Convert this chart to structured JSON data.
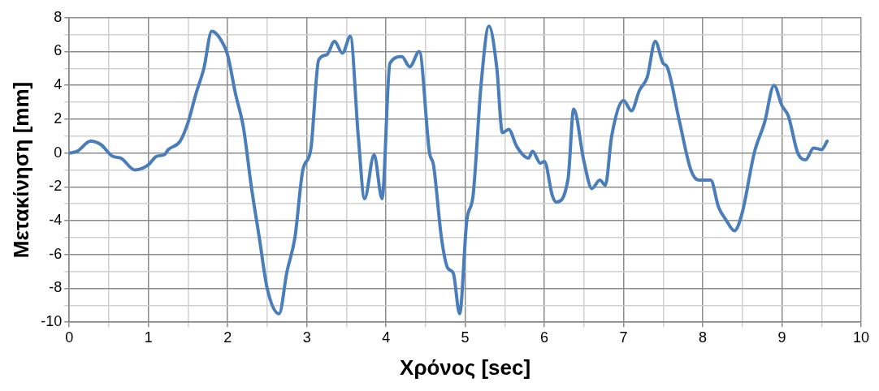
{
  "chart_data": {
    "type": "line",
    "xlabel": "Χρόνος [sec]",
    "ylabel": "Μετακίνηση [mm]",
    "xlim": [
      0,
      10
    ],
    "ylim": [
      -10,
      8
    ],
    "xticks": [
      0,
      {
        "value": 0.5,
        "label": null
      },
      1,
      {
        "value": 1.5,
        "label": null
      },
      2,
      {
        "value": 2.5,
        "label": null
      },
      3,
      {
        "value": 3.5,
        "label": null
      },
      4,
      {
        "value": 4.5,
        "label": null
      },
      5,
      {
        "value": 5.5,
        "label": null
      },
      6,
      {
        "value": 6.5,
        "label": null
      },
      7,
      {
        "value": 7.5,
        "label": null
      },
      8,
      {
        "value": 8.5,
        "label": null
      },
      9,
      {
        "value": 9.5,
        "label": null
      },
      10
    ],
    "yticks": [
      -10,
      {
        "value": -9,
        "label": null
      },
      -8,
      {
        "value": -7,
        "label": null
      },
      -6,
      {
        "value": -5,
        "label": null
      },
      -4,
      {
        "value": -3,
        "label": null
      },
      -2,
      {
        "value": -1,
        "label": null
      },
      0,
      {
        "value": 1,
        "label": null
      },
      2,
      {
        "value": 3,
        "label": null
      },
      4,
      {
        "value": 5,
        "label": null
      },
      6,
      {
        "value": 7,
        "label": null
      },
      8
    ],
    "grid": true,
    "legend": false,
    "marker": "none",
    "line_style": "solid",
    "series": [
      {
        "color": "#4a7ebb",
        "x": [
          0,
          0.1,
          0.27,
          0.4,
          0.55,
          0.65,
          0.83,
          1.0,
          1.1,
          1.2,
          1.25,
          1.4,
          1.5,
          1.6,
          1.7,
          1.8,
          1.9,
          2.0,
          2.1,
          2.2,
          2.3,
          2.4,
          2.5,
          2.65,
          2.75,
          2.85,
          2.95,
          3.05,
          3.15,
          3.25,
          3.35,
          3.45,
          3.55,
          3.65,
          3.73,
          3.85,
          3.95,
          4.05,
          4.2,
          4.3,
          4.42,
          4.55,
          4.6,
          4.7,
          4.78,
          4.85,
          4.93,
          5.02,
          5.1,
          5.2,
          5.3,
          5.4,
          5.47,
          5.55,
          5.65,
          5.8,
          5.85,
          5.95,
          6.0,
          6.1,
          6.15,
          6.3,
          6.37,
          6.5,
          6.6,
          6.7,
          6.77,
          6.85,
          7.0,
          7.1,
          7.2,
          7.3,
          7.4,
          7.5,
          7.55,
          7.7,
          7.85,
          7.95,
          8.1,
          8.2,
          8.3,
          8.4,
          8.5,
          8.65,
          8.78,
          8.9,
          9.0,
          9.08,
          9.2,
          9.3,
          9.4,
          9.5,
          9.57
        ],
        "values": [
          0,
          0.1,
          0.7,
          0.5,
          -0.2,
          -0.3,
          -1.0,
          -0.7,
          -0.2,
          -0.1,
          0.2,
          0.7,
          1.8,
          3.5,
          5,
          7.2,
          6.8,
          5.8,
          3.5,
          1.5,
          -2,
          -5,
          -8,
          -9.5,
          -7,
          -5,
          -1,
          0.2,
          5.5,
          5.8,
          6.6,
          5.9,
          6.9,
          1,
          -2.7,
          -0.1,
          -2.7,
          5.3,
          5.7,
          5.1,
          6,
          0,
          -0.7,
          -5,
          -6.8,
          -7.1,
          -9.5,
          -4,
          -2.5,
          4,
          7.5,
          5,
          1.2,
          1.4,
          0.4,
          -0.3,
          0.1,
          -0.6,
          -0.5,
          -2.5,
          -2.9,
          -1.5,
          2.6,
          -0.5,
          -2.1,
          -1.6,
          -1.9,
          1,
          3.1,
          2.5,
          3.7,
          4.5,
          6.6,
          5.3,
          5.1,
          2,
          -1,
          -1.6,
          -1.6,
          -3.2,
          -4,
          -4.6,
          -3.5,
          0,
          1.8,
          4,
          2.8,
          2.2,
          0,
          -0.4,
          0.3,
          0.2,
          0.7
        ]
      }
    ]
  }
}
